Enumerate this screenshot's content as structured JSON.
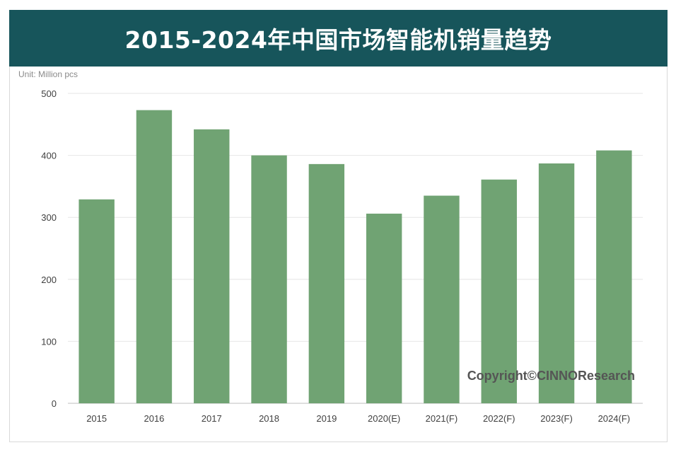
{
  "title": "2015-2024年中国市场智能机销量趋势",
  "unit_label": "Unit:  Million pcs",
  "copyright": "Copyright©CINNOResearch",
  "colors": {
    "banner": "#17555b",
    "bar": "#70a373",
    "grid": "#e6e6e6",
    "axis_text": "#404040"
  },
  "chart_data": {
    "type": "bar",
    "title": "2015-2024年中国市场智能机销量趋势",
    "xlabel": "",
    "ylabel": "",
    "unit": "Million pcs",
    "categories": [
      "2015",
      "2016",
      "2017",
      "2018",
      "2019",
      "2020(E)",
      "2021(F)",
      "2022(F)",
      "2023(F)",
      "2024(F)"
    ],
    "values": [
      329,
      473,
      442,
      400,
      386,
      306,
      335,
      361,
      387,
      408
    ],
    "ylim": [
      0,
      500
    ],
    "yticks": [
      "0",
      "100",
      "200",
      "300",
      "400",
      "500"
    ],
    "grid": true,
    "legend": "none"
  }
}
